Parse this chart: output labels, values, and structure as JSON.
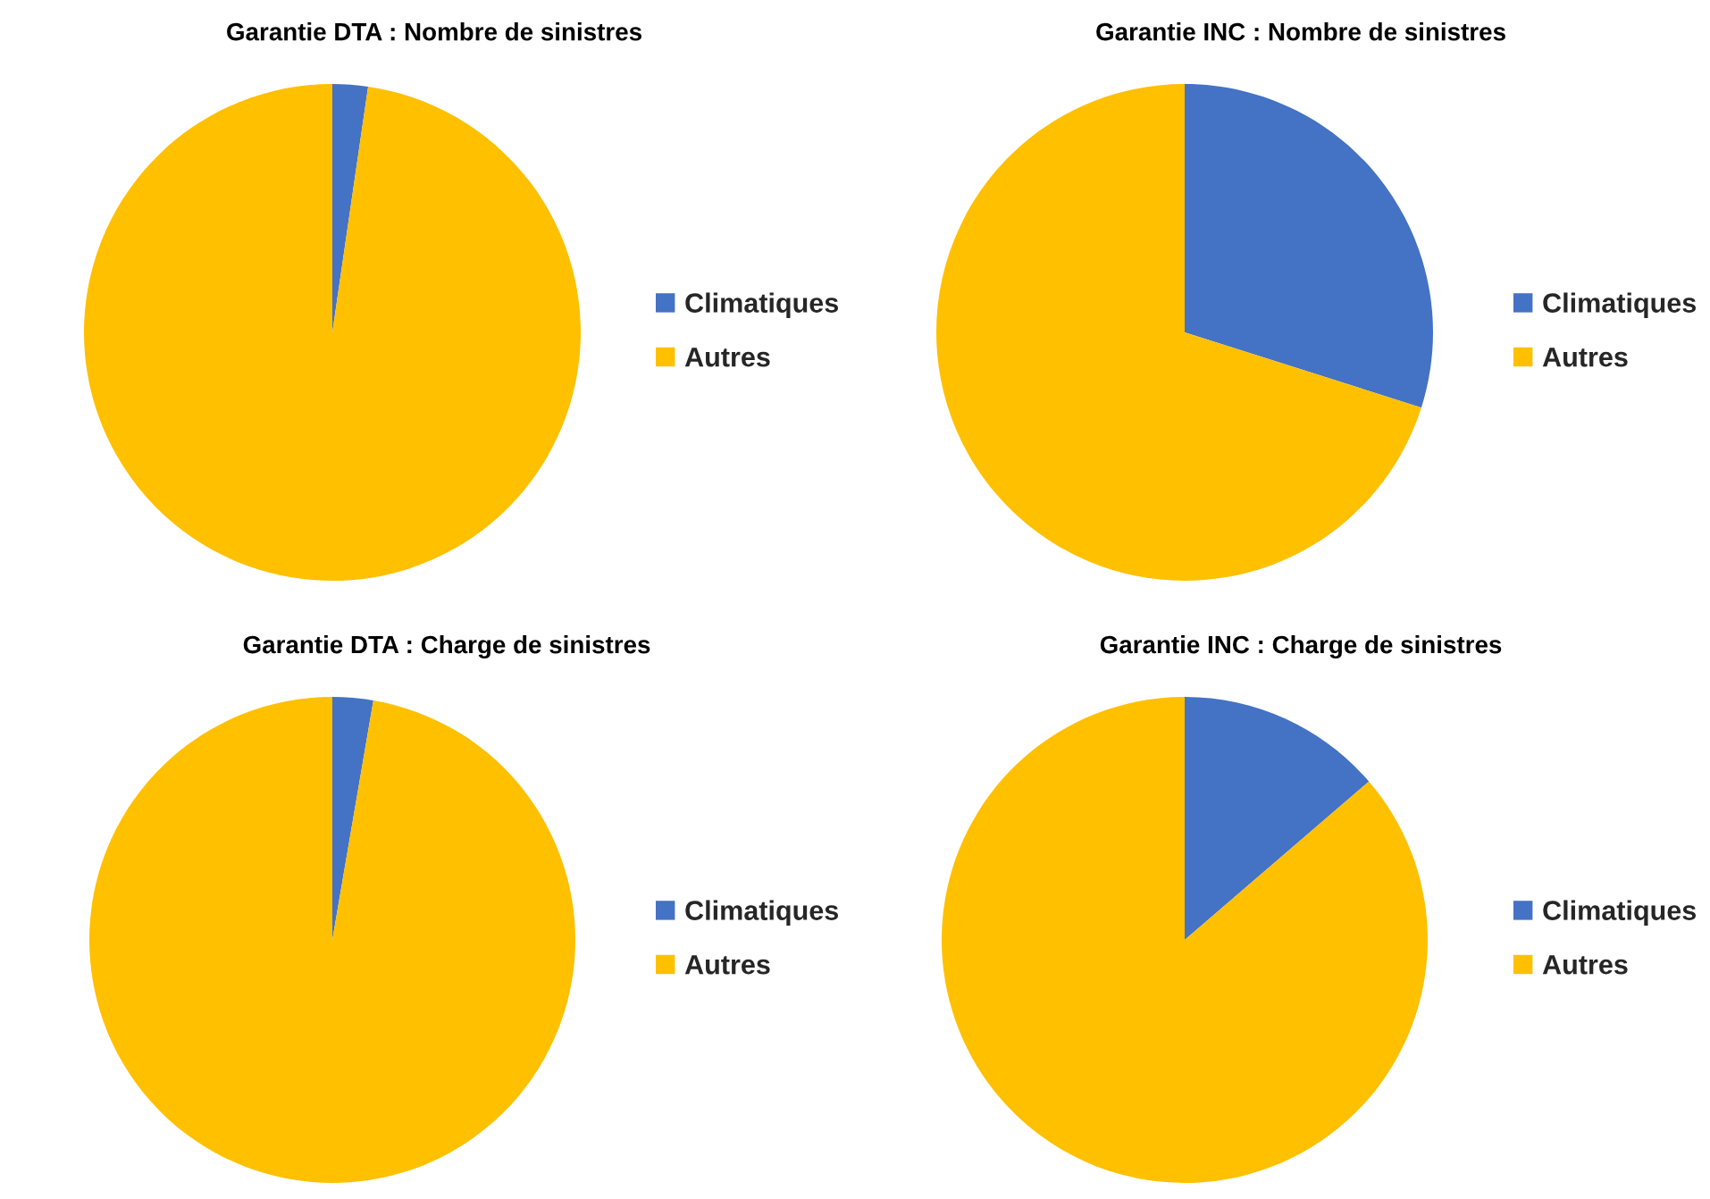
{
  "chart_data": [
    {
      "type": "pie",
      "title": "Garantie DTA : Nombre de sinistres",
      "categories": [
        "Climatiques",
        "Autres"
      ],
      "values": [
        2.3,
        97.7
      ],
      "colors": [
        "#4472c4",
        "#ffc000"
      ],
      "legend": "right"
    },
    {
      "type": "pie",
      "title": "Garantie INC : Nombre de sinistres",
      "categories": [
        "Climatiques",
        "Autres"
      ],
      "values": [
        29.9,
        70.1
      ],
      "colors": [
        "#4472c4",
        "#ffc000"
      ],
      "legend": "right"
    },
    {
      "type": "pie",
      "title": "Garantie DTA : Charge de sinistres",
      "categories": [
        "Climatiques",
        "Autres"
      ],
      "values": [
        2.7,
        97.3
      ],
      "colors": [
        "#4472c4",
        "#ffc000"
      ],
      "legend": "right"
    },
    {
      "type": "pie",
      "title": "Garantie INC : Charge de sinistres",
      "categories": [
        "Climatiques",
        "Autres"
      ],
      "values": [
        13.7,
        86.3
      ],
      "colors": [
        "#4472c4",
        "#ffc000"
      ],
      "legend": "right"
    }
  ]
}
